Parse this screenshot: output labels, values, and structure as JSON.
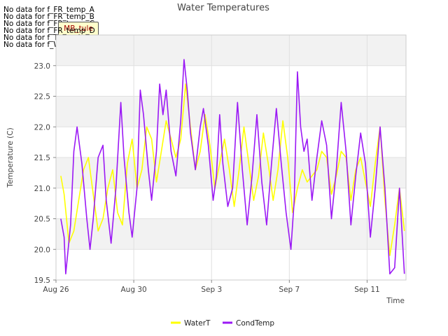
{
  "nodata_messages": [
    "No data for f_FR_temp_A",
    "No data for f_FR_temp_B",
    "No data for f_FR_temp_C",
    "No data for f_FR_temp_D",
    "No data for f_Temp_A",
    "No data for f_WaterTemp_CTD"
  ],
  "badge_text": "MB_tule",
  "chart_data": {
    "type": "line",
    "title": "Water Temperatures",
    "xlabel": "Time",
    "ylabel": "Temperature (C)",
    "ylim": [
      19.5,
      23.5
    ],
    "xlim": [
      "2024-08-26",
      "2024-09-13"
    ],
    "x_ticks": [
      "Aug 26",
      "Aug 30",
      "Sep 3",
      "Sep 7",
      "Sep 11"
    ],
    "y_ticks": [
      "19.5",
      "20.0",
      "20.5",
      "21.0",
      "21.5",
      "22.0",
      "22.5",
      "23.0"
    ],
    "grid": true,
    "legend_position": "bottom",
    "series": [
      {
        "name": "WaterT",
        "color": "#ffff00",
        "points": [
          [
            "2024-08-26T06:00",
            21.2
          ],
          [
            "2024-08-26T10:00",
            20.9
          ],
          [
            "2024-08-26T16:00",
            20.1
          ],
          [
            "2024-08-26T22:00",
            20.3
          ],
          [
            "2024-08-27T04:00",
            20.8
          ],
          [
            "2024-08-27T10:00",
            21.3
          ],
          [
            "2024-08-27T16:00",
            21.5
          ],
          [
            "2024-08-27T22:00",
            20.9
          ],
          [
            "2024-08-28T04:00",
            20.3
          ],
          [
            "2024-08-28T10:00",
            20.5
          ],
          [
            "2024-08-28T16:00",
            21.0
          ],
          [
            "2024-08-28T22:00",
            21.3
          ],
          [
            "2024-08-29T04:00",
            20.6
          ],
          [
            "2024-08-29T10:00",
            20.4
          ],
          [
            "2024-08-29T16:00",
            21.4
          ],
          [
            "2024-08-29T22:00",
            21.8
          ],
          [
            "2024-08-30T04:00",
            21.0
          ],
          [
            "2024-08-30T10:00",
            21.3
          ],
          [
            "2024-08-30T16:00",
            22.0
          ],
          [
            "2024-08-30T22:00",
            21.8
          ],
          [
            "2024-08-31T04:00",
            21.1
          ],
          [
            "2024-08-31T10:00",
            21.6
          ],
          [
            "2024-08-31T16:00",
            22.1
          ],
          [
            "2024-08-31T22:00",
            21.8
          ],
          [
            "2024-09-01T04:00",
            21.5
          ],
          [
            "2024-09-01T10:00",
            21.8
          ],
          [
            "2024-09-01T16:00",
            22.7
          ],
          [
            "2024-09-01T22:00",
            22.0
          ],
          [
            "2024-09-02T04:00",
            21.3
          ],
          [
            "2024-09-02T10:00",
            21.6
          ],
          [
            "2024-09-02T16:00",
            22.2
          ],
          [
            "2024-09-02T22:00",
            21.7
          ],
          [
            "2024-09-03T04:00",
            21.0
          ],
          [
            "2024-09-03T10:00",
            21.4
          ],
          [
            "2024-09-03T16:00",
            21.8
          ],
          [
            "2024-09-03T22:00",
            21.3
          ],
          [
            "2024-09-04T04:00",
            20.7
          ],
          [
            "2024-09-04T10:00",
            21.3
          ],
          [
            "2024-09-04T16:00",
            22.0
          ],
          [
            "2024-09-04T22:00",
            21.4
          ],
          [
            "2024-09-05T04:00",
            20.8
          ],
          [
            "2024-09-05T10:00",
            21.2
          ],
          [
            "2024-09-05T16:00",
            21.9
          ],
          [
            "2024-09-05T22:00",
            21.4
          ],
          [
            "2024-09-06T04:00",
            20.8
          ],
          [
            "2024-09-06T10:00",
            21.3
          ],
          [
            "2024-09-06T16:00",
            22.1
          ],
          [
            "2024-09-06T22:00",
            21.5
          ],
          [
            "2024-09-07T04:00",
            20.6
          ],
          [
            "2024-09-07T10:00",
            21.0
          ],
          [
            "2024-09-07T16:00",
            21.3
          ],
          [
            "2024-09-07T22:00",
            21.1
          ],
          [
            "2024-09-08T04:00",
            21.2
          ],
          [
            "2024-09-08T10:00",
            21.3
          ],
          [
            "2024-09-08T16:00",
            21.6
          ],
          [
            "2024-09-08T22:00",
            21.5
          ],
          [
            "2024-09-09T04:00",
            20.9
          ],
          [
            "2024-09-09T10:00",
            21.2
          ],
          [
            "2024-09-09T16:00",
            21.6
          ],
          [
            "2024-09-09T22:00",
            21.5
          ],
          [
            "2024-09-10T04:00",
            20.8
          ],
          [
            "2024-09-10T10:00",
            21.3
          ],
          [
            "2024-09-10T16:00",
            21.5
          ],
          [
            "2024-09-10T22:00",
            21.1
          ],
          [
            "2024-09-11T04:00",
            20.7
          ],
          [
            "2024-09-11T10:00",
            21.4
          ],
          [
            "2024-09-11T16:00",
            22.0
          ],
          [
            "2024-09-11T22:00",
            20.8
          ],
          [
            "2024-09-12T04:00",
            19.9
          ],
          [
            "2024-09-12T10:00",
            20.4
          ],
          [
            "2024-09-12T16:00",
            21.0
          ],
          [
            "2024-09-12T22:00",
            20.3
          ]
        ]
      },
      {
        "name": "CondTemp",
        "color": "#9b19f5",
        "points": [
          [
            "2024-08-26T06:00",
            20.5
          ],
          [
            "2024-08-26T10:00",
            20.2
          ],
          [
            "2024-08-26T12:00",
            19.6
          ],
          [
            "2024-08-26T18:00",
            20.4
          ],
          [
            "2024-08-26T22:00",
            21.6
          ],
          [
            "2024-08-27T02:00",
            22.0
          ],
          [
            "2024-08-27T08:00",
            21.4
          ],
          [
            "2024-08-27T14:00",
            20.5
          ],
          [
            "2024-08-27T18:00",
            20.0
          ],
          [
            "2024-08-27T22:00",
            20.5
          ],
          [
            "2024-08-28T04:00",
            21.5
          ],
          [
            "2024-08-28T10:00",
            21.7
          ],
          [
            "2024-08-28T14:00",
            20.8
          ],
          [
            "2024-08-28T20:00",
            20.1
          ],
          [
            "2024-08-29T02:00",
            21.0
          ],
          [
            "2024-08-29T08:00",
            22.4
          ],
          [
            "2024-08-29T12:00",
            21.5
          ],
          [
            "2024-08-29T18:00",
            20.6
          ],
          [
            "2024-08-29T22:00",
            20.2
          ],
          [
            "2024-08-30T04:00",
            21.0
          ],
          [
            "2024-08-30T08:00",
            22.6
          ],
          [
            "2024-08-30T12:00",
            22.2
          ],
          [
            "2024-08-30T18:00",
            21.3
          ],
          [
            "2024-08-30T22:00",
            20.8
          ],
          [
            "2024-08-31T04:00",
            21.6
          ],
          [
            "2024-08-31T08:00",
            22.7
          ],
          [
            "2024-08-31T12:00",
            22.2
          ],
          [
            "2024-08-31T16:00",
            22.6
          ],
          [
            "2024-08-31T22:00",
            21.6
          ],
          [
            "2024-09-01T04:00",
            21.2
          ],
          [
            "2024-09-01T10:00",
            22.1
          ],
          [
            "2024-09-01T14:00",
            23.1
          ],
          [
            "2024-09-01T18:00",
            22.6
          ],
          [
            "2024-09-01T22:00",
            21.9
          ],
          [
            "2024-09-02T04:00",
            21.3
          ],
          [
            "2024-09-02T10:00",
            22.0
          ],
          [
            "2024-09-02T14:00",
            22.3
          ],
          [
            "2024-09-02T20:00",
            21.7
          ],
          [
            "2024-09-03T02:00",
            20.8
          ],
          [
            "2024-09-03T06:00",
            21.2
          ],
          [
            "2024-09-03T10:00",
            22.2
          ],
          [
            "2024-09-03T14:00",
            21.4
          ],
          [
            "2024-09-03T20:00",
            20.7
          ],
          [
            "2024-09-04T02:00",
            21.0
          ],
          [
            "2024-09-04T08:00",
            22.4
          ],
          [
            "2024-09-04T14:00",
            21.3
          ],
          [
            "2024-09-04T20:00",
            20.4
          ],
          [
            "2024-09-05T02:00",
            21.2
          ],
          [
            "2024-09-05T08:00",
            22.2
          ],
          [
            "2024-09-05T14:00",
            21.1
          ],
          [
            "2024-09-05T20:00",
            20.4
          ],
          [
            "2024-09-06T02:00",
            21.4
          ],
          [
            "2024-09-06T08:00",
            22.3
          ],
          [
            "2024-09-06T14:00",
            21.4
          ],
          [
            "2024-09-06T20:00",
            20.6
          ],
          [
            "2024-09-07T02:00",
            20.0
          ],
          [
            "2024-09-07T06:00",
            20.8
          ],
          [
            "2024-09-07T10:00",
            22.9
          ],
          [
            "2024-09-07T14:00",
            22.0
          ],
          [
            "2024-09-07T18:00",
            21.6
          ],
          [
            "2024-09-07T22:00",
            21.8
          ],
          [
            "2024-09-08T04:00",
            20.8
          ],
          [
            "2024-09-08T10:00",
            21.5
          ],
          [
            "2024-09-08T16:00",
            22.1
          ],
          [
            "2024-09-08T22:00",
            21.7
          ],
          [
            "2024-09-09T04:00",
            20.5
          ],
          [
            "2024-09-09T10:00",
            21.3
          ],
          [
            "2024-09-09T16:00",
            22.4
          ],
          [
            "2024-09-09T22:00",
            21.6
          ],
          [
            "2024-09-10T04:00",
            20.4
          ],
          [
            "2024-09-10T10:00",
            21.2
          ],
          [
            "2024-09-10T16:00",
            21.9
          ],
          [
            "2024-09-10T22:00",
            21.4
          ],
          [
            "2024-09-11T04:00",
            20.2
          ],
          [
            "2024-09-11T10:00",
            21.0
          ],
          [
            "2024-09-11T16:00",
            22.0
          ],
          [
            "2024-09-11T22:00",
            21.0
          ],
          [
            "2024-09-12T04:00",
            19.6
          ],
          [
            "2024-09-12T10:00",
            19.7
          ],
          [
            "2024-09-12T16:00",
            21.0
          ],
          [
            "2024-09-12T22:00",
            19.6
          ]
        ]
      }
    ]
  }
}
